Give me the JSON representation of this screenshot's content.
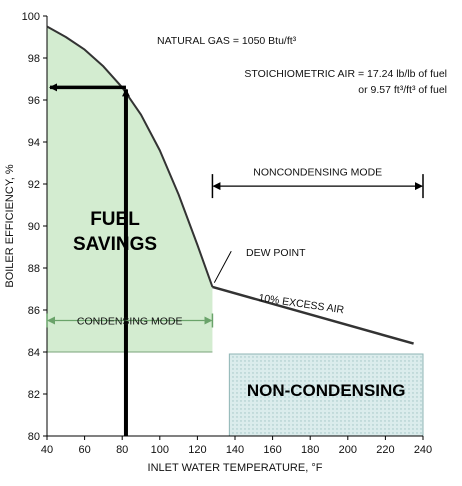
{
  "chart_data": {
    "type": "area",
    "xlabel": "INLET WATER TEMPERATURE, °F",
    "ylabel": "BOILER EFFICIENCY, %",
    "xlim": [
      40,
      240
    ],
    "ylim": [
      80,
      100
    ],
    "x_ticks": [
      40,
      60,
      80,
      100,
      120,
      140,
      160,
      180,
      200,
      220,
      240
    ],
    "y_ticks": [
      80,
      82,
      84,
      86,
      88,
      90,
      92,
      94,
      96,
      98,
      100
    ],
    "grid": false,
    "series": [
      {
        "name": "",
        "x": [
          40,
          50,
          60,
          70,
          80,
          90,
          100,
          110,
          120,
          128
        ],
        "y": [
          99.5,
          99.0,
          98.4,
          97.6,
          96.6,
          95.3,
          93.6,
          91.5,
          89.1,
          87.1
        ]
      },
      {
        "name": "10% EXCESS AIR",
        "x": [
          128,
          235
        ],
        "y": [
          87.1,
          84.4
        ]
      }
    ],
    "annotations": {
      "natural_gas": "NATURAL GAS = 1050 Btu/ft³",
      "stoich_line1": "STOICHIOMETRIC AIR = 17.24 lb/lb of fuel",
      "stoich_line2": "or 9.57 ft³/ft³ of fuel",
      "noncondensing_mode": "NONCONDENSING MODE",
      "condensing_mode": "CONDENSING MODE",
      "dew_point": "DEW POINT",
      "excess_air": "10% EXCESS AIR",
      "fuel_line1": "FUEL",
      "fuel_line2": "SAVINGS",
      "non_condensing": "NON-CONDENSING"
    },
    "regions": {
      "fuel_savings_fill": "#d3ecd0",
      "non_condensing_fill": "#dbecec",
      "condensing_mode_color": "#6aa36a"
    },
    "markers": {
      "vertical_arrow_x": 82,
      "horizontal_arrow_y": 96.6,
      "noncondensing_mode_range": [
        128,
        240
      ],
      "condensing_mode_range": [
        40,
        128
      ],
      "non_condensing_box": {
        "x": [
          137,
          240
        ],
        "y": [
          80,
          84
        ]
      }
    }
  }
}
